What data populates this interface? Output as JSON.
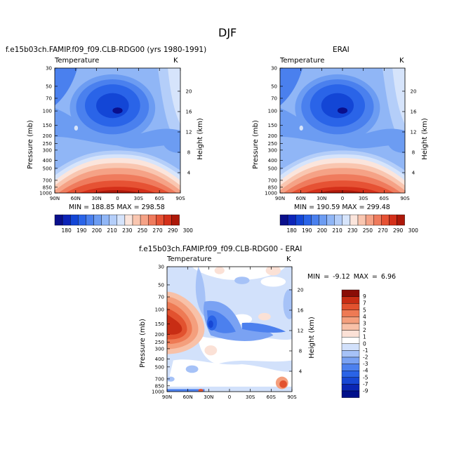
{
  "figure": {
    "main_title": "DJF",
    "panel_left_title": "f.e15b03ch.FAMIP.f09_f09.CLB-RDG00 (yrs 1980-1991)",
    "panel_right_title": "ERAI",
    "panel_diff_title": "f.e15b03ch.FAMIP.f09_f09.CLB-RDG00 - ERAI"
  },
  "chart_data": [
    {
      "type": "heatmap",
      "subtype": "latitude-pressure filled contour",
      "variable": "Temperature",
      "units": "K",
      "title": "f.e15b03ch.FAMIP.f09_f09.CLB-RDG00 (yrs 1980-1991)",
      "xlabel": "",
      "ylabel": "Pressure (mb)",
      "y2label": "Height (km)",
      "x_ticks": [
        "90N",
        "60N",
        "30N",
        "0",
        "30S",
        "60S",
        "90S"
      ],
      "y_ticks": [
        "30",
        "50",
        "70",
        "100",
        "150",
        "200",
        "250",
        "300",
        "400",
        "500",
        "700",
        "850",
        "1000"
      ],
      "y2_ticks": [
        "20",
        "16",
        "12",
        "8",
        "4"
      ],
      "stats": "MIN = 188.85   MAX = 298.58",
      "min": 188.85,
      "max": 298.58,
      "colorbar_labels": [
        "180",
        "190",
        "200",
        "210",
        "230",
        "250",
        "270",
        "290",
        "300"
      ]
    },
    {
      "type": "heatmap",
      "subtype": "latitude-pressure filled contour",
      "variable": "Temperature",
      "units": "K",
      "title": "ERAI",
      "xlabel": "",
      "ylabel": "Pressure (mb)",
      "y2label": "Height (km)",
      "x_ticks": [
        "90N",
        "60N",
        "30N",
        "0",
        "30S",
        "60S",
        "90S"
      ],
      "y_ticks": [
        "30",
        "50",
        "70",
        "100",
        "150",
        "200",
        "250",
        "300",
        "400",
        "500",
        "700",
        "850",
        "1000"
      ],
      "y2_ticks": [
        "20",
        "16",
        "12",
        "8",
        "4"
      ],
      "stats": "MIN = 190.59   MAX = 299.48",
      "min": 190.59,
      "max": 299.48,
      "colorbar_labels": [
        "180",
        "190",
        "200",
        "210",
        "230",
        "250",
        "270",
        "290",
        "300"
      ]
    },
    {
      "type": "heatmap",
      "subtype": "latitude-pressure filled contour (difference)",
      "variable": "Temperature",
      "units": "K",
      "title": "f.e15b03ch.FAMIP.f09_f09.CLB-RDG00 - ERAI",
      "xlabel": "",
      "ylabel": "Pressure (mb)",
      "y2label": "Height (km)",
      "x_ticks": [
        "90N",
        "60N",
        "30N",
        "0",
        "30S",
        "60S",
        "90S"
      ],
      "y_ticks": [
        "30",
        "50",
        "70",
        "100",
        "150",
        "200",
        "250",
        "300",
        "400",
        "500",
        "700",
        "850",
        "1000"
      ],
      "y2_ticks": [
        "20",
        "16",
        "12",
        "8",
        "4"
      ],
      "stats": "MIN = -9.12   MAX = 6.96",
      "min": -9.12,
      "max": 6.96,
      "colorbar_labels": [
        "9",
        "7",
        "5",
        "4",
        "3",
        "2",
        "1",
        "0",
        "-1",
        "-2",
        "-3",
        "-4",
        "-5",
        "-7",
        "-9"
      ]
    }
  ],
  "colors": {
    "abs_scale": [
      "#0a0f8c",
      "#0c24b8",
      "#1346d6",
      "#2a64e8",
      "#4a80ee",
      "#6c9cf2",
      "#90b6f6",
      "#b4cef9",
      "#d6e4fb",
      "#fbe5dc",
      "#f9c6b0",
      "#f5a286",
      "#ef7b5d",
      "#e65234",
      "#d4301a",
      "#ad1809"
    ],
    "diff_scale": [
      "#00108a",
      "#0a26b4",
      "#1747d4",
      "#2a63e6",
      "#4c80ee",
      "#7aa2f3",
      "#a6c2f7",
      "#d2e1fb",
      "#ffffff",
      "#fbe1d6",
      "#f8c1a8",
      "#f49f7d",
      "#ee7a54",
      "#e2522f",
      "#c82d14",
      "#8a0d06"
    ]
  }
}
